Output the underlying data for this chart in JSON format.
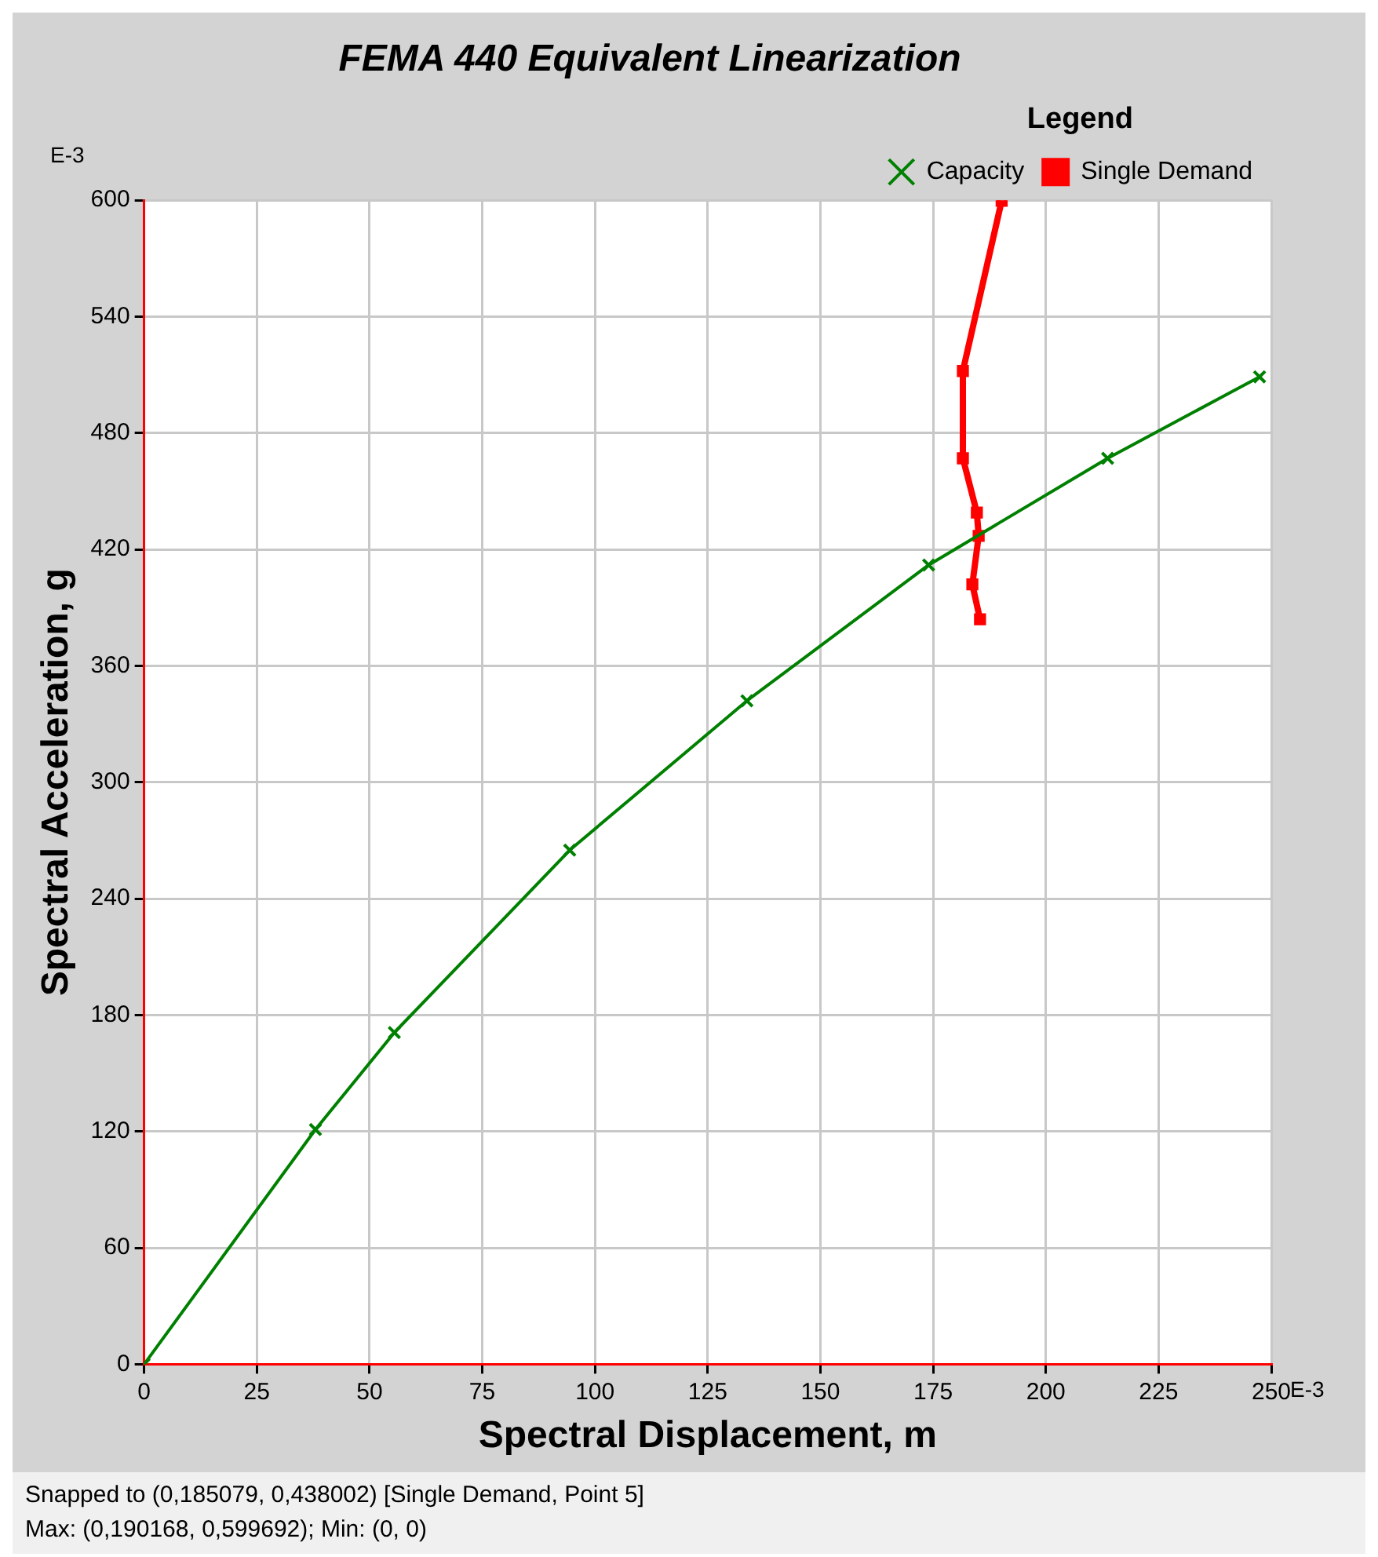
{
  "chart_data": {
    "type": "line",
    "title": "FEMA 440 Equivalent Linearization",
    "xlabel": "Spectral Displacement, m",
    "ylabel": "Spectral Acceleration, g",
    "legend_title": "Legend",
    "legend": "top right",
    "grid": true,
    "line_style": "solid",
    "xlim": [
      0,
      250
    ],
    "xticks": [
      0,
      25,
      50,
      75,
      100,
      125,
      150,
      175,
      200,
      225,
      250
    ],
    "ylim": [
      0,
      600
    ],
    "yticks": [
      0,
      60,
      120,
      180,
      240,
      300,
      360,
      420,
      480,
      540,
      600
    ],
    "series": [
      {
        "name": "Capacity",
        "color": "#008000",
        "marker": "cross",
        "x": [
          0,
          38,
          55.5,
          94.4,
          133.7,
          174,
          213.7,
          247.4
        ],
        "values": [
          0,
          121,
          171,
          265,
          342,
          412,
          467,
          509
        ]
      },
      {
        "name": "Single Demand",
        "color": "#ff0000",
        "marker": "square",
        "x": [
          190.2,
          181.6,
          181.6,
          184.7,
          185.1,
          183.7,
          185.4
        ],
        "values": [
          599.7,
          512,
          467,
          439,
          427,
          402,
          384
        ]
      }
    ],
    "annotations": [
      "E-3",
      "E-3",
      "Snapped to (0,185079, 0,438002)   [Single Demand, Point 5]",
      "Max: (0,190168, 0,599692);   Min: (0, 0)"
    ]
  }
}
